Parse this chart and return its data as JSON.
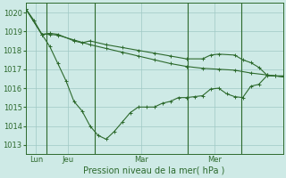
{
  "background_color": "#ceeae6",
  "grid_color": "#a0c8c4",
  "line_color": "#2d6a2d",
  "title": "Pression niveau de la mer( hPa )",
  "ylim": [
    1012.5,
    1020.5
  ],
  "yticks": [
    1013,
    1014,
    1015,
    1016,
    1017,
    1018,
    1019,
    1020
  ],
  "vline_x": [
    0.08,
    0.27,
    0.63,
    0.84
  ],
  "xtick_pos": [
    0.04,
    0.165,
    0.45,
    0.735
  ],
  "xtick_labels": [
    "Lun",
    "Jeu",
    "Mar",
    "Mer"
  ],
  "line1_x": [
    0,
    4,
    6,
    8,
    12,
    14,
    16,
    20,
    24,
    28,
    32,
    36,
    40,
    44,
    46,
    48,
    52,
    54,
    56,
    58,
    60,
    62,
    64
  ],
  "line1_y": [
    1020.2,
    1018.85,
    1018.9,
    1018.85,
    1018.5,
    1018.4,
    1018.5,
    1018.3,
    1018.15,
    1018.0,
    1017.85,
    1017.7,
    1017.55,
    1017.55,
    1017.75,
    1017.8,
    1017.75,
    1017.5,
    1017.35,
    1017.1,
    1016.7,
    1016.65,
    1016.65
  ],
  "line2_x": [
    0,
    4,
    6,
    8,
    12,
    16,
    20,
    24,
    28,
    32,
    36,
    40,
    44,
    48,
    52,
    56,
    60,
    64
  ],
  "line2_y": [
    1020.2,
    1018.85,
    1018.85,
    1018.8,
    1018.55,
    1018.3,
    1018.1,
    1017.9,
    1017.7,
    1017.5,
    1017.3,
    1017.15,
    1017.05,
    1017.0,
    1016.95,
    1016.8,
    1016.7,
    1016.6
  ],
  "line3_x": [
    0,
    2,
    4,
    6,
    8,
    10,
    12,
    14,
    16,
    18,
    20,
    22,
    24,
    26,
    28,
    30,
    32,
    34,
    36,
    38,
    40,
    42,
    44,
    46,
    48,
    50,
    52,
    54,
    56,
    58,
    60,
    62,
    64
  ],
  "line3_y": [
    1020.2,
    1019.6,
    1018.85,
    1018.2,
    1017.3,
    1016.4,
    1015.3,
    1014.8,
    1014.0,
    1013.5,
    1013.3,
    1013.7,
    1014.2,
    1014.7,
    1015.0,
    1015.0,
    1015.0,
    1015.2,
    1015.3,
    1015.5,
    1015.5,
    1015.55,
    1015.6,
    1015.95,
    1016.0,
    1015.7,
    1015.55,
    1015.5,
    1016.1,
    1016.2,
    1016.65,
    1016.65,
    1016.6
  ],
  "marker_size": 2.5
}
